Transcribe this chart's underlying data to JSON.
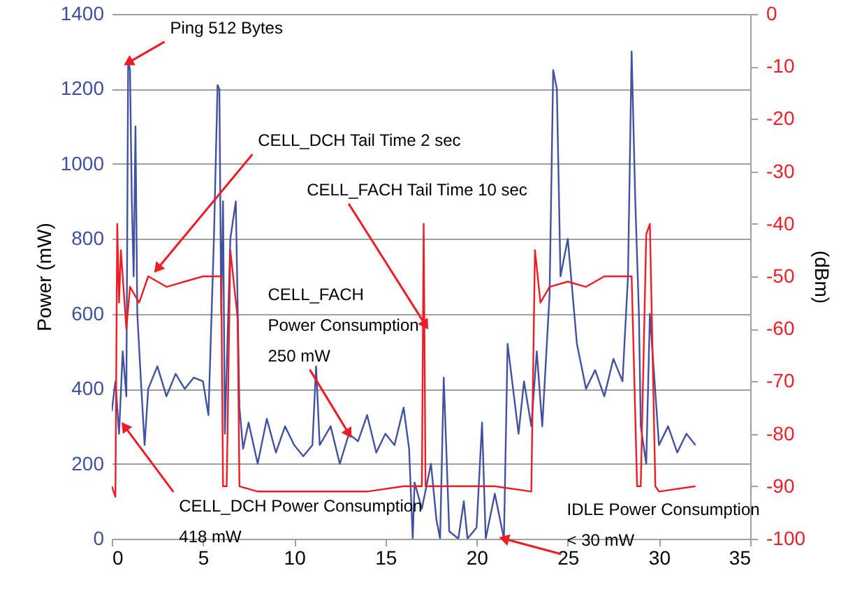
{
  "chart_data": {
    "type": "line",
    "xlabel": null,
    "ylabel": "Power (mW)",
    "y2label": "(dBm)",
    "xlim": [
      0,
      35
    ],
    "xticks": [
      0,
      5,
      10,
      15,
      20,
      25,
      30,
      35
    ],
    "ylim": [
      0,
      1400
    ],
    "yticks": [
      0,
      200,
      400,
      600,
      800,
      1000,
      1200,
      1400
    ],
    "y2lim": [
      -100,
      0
    ],
    "y2ticks": [
      -100,
      -90,
      -80,
      -70,
      -60,
      -50,
      -40,
      -30,
      -20,
      -10,
      0
    ],
    "grid": "y",
    "marker": "none",
    "line_style": "solid",
    "series": [
      {
        "color": "#4152a2",
        "x": [
          0,
          0.2,
          0.4,
          0.6,
          0.8,
          0.9,
          1.0,
          1.1,
          1.2,
          1.3,
          1.4,
          1.6,
          1.8,
          2.0,
          2.5,
          3,
          3.5,
          4,
          4.5,
          5,
          5.3,
          5.6,
          5.8,
          5.9,
          6.0,
          6.1,
          6.2,
          6.5,
          6.8,
          7.0,
          7.2,
          7.5,
          8,
          8.5,
          9,
          9.5,
          10,
          10.5,
          11,
          11.2,
          11.4,
          12,
          12.5,
          13,
          13.5,
          14,
          14.5,
          15,
          15.5,
          16,
          16.3,
          16.5,
          16.6,
          17,
          17.5,
          17.8,
          18,
          18.2,
          18.5,
          19,
          19.3,
          19.5,
          20,
          20.3,
          20.5,
          21,
          21.5,
          21.7,
          22,
          22.3,
          22.6,
          23,
          23.3,
          23.6,
          24,
          24.2,
          24.4,
          24.6,
          25,
          25.5,
          26,
          26.5,
          27,
          27.5,
          28,
          28.3,
          28.5,
          28.7,
          28.9,
          29,
          29.3,
          29.5,
          30,
          30.5,
          31,
          31.5,
          32
        ],
        "values": [
          340,
          420,
          280,
          500,
          380,
          1280,
          1250,
          900,
          700,
          1100,
          600,
          420,
          250,
          400,
          460,
          380,
          440,
          400,
          430,
          420,
          330,
          800,
          1210,
          1200,
          600,
          900,
          280,
          800,
          900,
          350,
          240,
          310,
          200,
          320,
          230,
          300,
          250,
          220,
          250,
          460,
          250,
          300,
          200,
          280,
          260,
          330,
          230,
          280,
          250,
          350,
          240,
          0,
          150,
          80,
          200,
          50,
          0,
          430,
          20,
          0,
          100,
          0,
          30,
          310,
          0,
          120,
          0,
          520,
          400,
          280,
          420,
          300,
          500,
          300,
          650,
          1250,
          1200,
          700,
          800,
          520,
          400,
          450,
          380,
          480,
          420,
          700,
          1300,
          900,
          600,
          300,
          200,
          600,
          250,
          300,
          230,
          280,
          250
        ]
      },
      {
        "color": "#ee1c25",
        "axis": "y2",
        "x": [
          0,
          0.2,
          0.3,
          0.4,
          0.5,
          0.8,
          1,
          1.5,
          2,
          3,
          4,
          5,
          6,
          6.1,
          6.3,
          6.5,
          6.9,
          7,
          8,
          10,
          12,
          14,
          16,
          17,
          17.1,
          17.2,
          19,
          21,
          23,
          23.2,
          23.5,
          24,
          25,
          26,
          27,
          28,
          28.5,
          28.8,
          29,
          29.3,
          29.5,
          29.8,
          30,
          32
        ],
        "values": [
          -90,
          -92,
          -40,
          -55,
          -45,
          -60,
          -52,
          -55,
          -50,
          -52,
          -51,
          -50,
          -50,
          -90,
          -90,
          -45,
          -58,
          -90,
          -91,
          -91,
          -91,
          -91,
          -90,
          -90,
          -40,
          -90,
          -90,
          -90,
          -91,
          -45,
          -55,
          -52,
          -51,
          -52,
          -50,
          -50,
          -50,
          -90,
          -90,
          -42,
          -40,
          -90,
          -91,
          -90
        ]
      }
    ],
    "annotations": [
      {
        "text": "Ping 512 Bytes",
        "x": 0.9,
        "y": 1270
      },
      {
        "text": "CELL_DCH Tail Time  2 sec",
        "x": 2.5,
        "y": 720
      },
      {
        "text": "CELL_FACH Tail Time 10 sec",
        "x": 17.2,
        "y": 570
      },
      {
        "text": "CELL_FACH\nPower Consumption\n250 mW",
        "x": 13,
        "y": 280
      },
      {
        "text": "CELL_DCH Power Consumption\n418 mW",
        "x": 0.7,
        "y": 300
      },
      {
        "text": "IDLE Power Consumption\n< 30 mW",
        "x": 21.5,
        "y": 0
      }
    ]
  }
}
